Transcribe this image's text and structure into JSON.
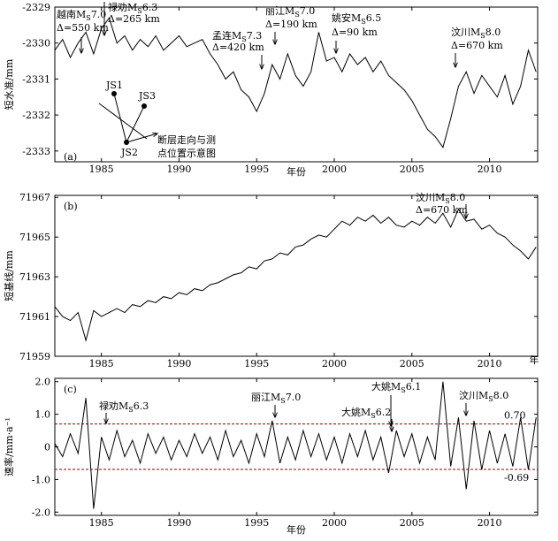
{
  "chart_data": [
    {
      "type": "line",
      "panel_label": "(a)",
      "ylabel": "短水准/mm",
      "xlabel": "年份",
      "color": "#000000",
      "xlim": [
        1982,
        2013.1
      ],
      "ylim": [
        -2333.3,
        -2329
      ],
      "xticks": [
        1985,
        1990,
        1995,
        2000,
        2005,
        2010
      ],
      "yticks": [
        -2329,
        -2330,
        -2331,
        -2332,
        -2333
      ],
      "x": [
        1982,
        1982.5,
        1983,
        1983.5,
        1984,
        1984.5,
        1985,
        1985.5,
        1986,
        1986.5,
        1987,
        1987.5,
        1988,
        1988.5,
        1989,
        1989.5,
        1990,
        1990.5,
        1991,
        1991.5,
        1992,
        1992.5,
        1993,
        1993.5,
        1994,
        1994.5,
        1995,
        1995.5,
        1996,
        1996.5,
        1997,
        1997.5,
        1998,
        1998.5,
        1999,
        1999.5,
        2000,
        2000.5,
        2001,
        2001.5,
        2002,
        2002.5,
        2003,
        2003.5,
        2004,
        2004.5,
        2005,
        2005.5,
        2006,
        2006.5,
        2007,
        2007.5,
        2008,
        2008.5,
        2009,
        2009.5,
        2010,
        2010.5,
        2011,
        2011.5,
        2012,
        2012.5,
        2013
      ],
      "values": [
        -2330.2,
        -2329.9,
        -2330.4,
        -2330.0,
        -2329.7,
        -2330.3,
        -2329.6,
        -2329.3,
        -2330.0,
        -2329.8,
        -2330.2,
        -2329.9,
        -2330.1,
        -2329.8,
        -2330.2,
        -2330.0,
        -2329.8,
        -2330.1,
        -2330.0,
        -2329.9,
        -2330.3,
        -2330.6,
        -2331.0,
        -2330.8,
        -2331.3,
        -2331.5,
        -2331.9,
        -2331.4,
        -2330.6,
        -2331.0,
        -2330.3,
        -2330.9,
        -2331.2,
        -2330.8,
        -2329.7,
        -2330.5,
        -2330.4,
        -2330.8,
        -2330.3,
        -2330.6,
        -2330.4,
        -2330.8,
        -2330.5,
        -2330.9,
        -2331.1,
        -2331.3,
        -2331.6,
        -2332.0,
        -2332.4,
        -2332.6,
        -2332.9,
        -2332.1,
        -2331.2,
        -2330.8,
        -2331.4,
        -2330.9,
        -2331.2,
        -2331.5,
        -2330.9,
        -2331.7,
        -2331.2,
        -2330.2,
        -2330.8
      ],
      "annotations": [
        {
          "label": "越南M",
          "sub": "S",
          "mag": "7.0",
          "dist": "Δ=550 km"
        },
        {
          "label": "禄劝M",
          "sub": "S",
          "mag": "6.3",
          "dist": "Δ=265 km"
        },
        {
          "label": "孟连M",
          "sub": "S",
          "mag": "7.3",
          "dist": "Δ=420 km"
        },
        {
          "label": "丽江M",
          "sub": "S",
          "mag": "7.0",
          "dist": "Δ=190 km"
        },
        {
          "label": "姚安M",
          "sub": "S",
          "mag": "6.5",
          "dist": "Δ=90 km"
        },
        {
          "label": "汶川M",
          "sub": "S",
          "mag": "8.0",
          "dist": "Δ=670 km"
        }
      ],
      "inset": {
        "points": [
          "JS1",
          "JS2",
          "JS3"
        ],
        "caption": [
          "断层走向与测",
          "点位置示意图"
        ]
      }
    },
    {
      "type": "line",
      "panel_label": "(b)",
      "ylabel": "短基线/mm",
      "xlabel": "年",
      "color": "#000000",
      "xlim": [
        1982,
        2013.1
      ],
      "ylim": [
        71959,
        71967.1
      ],
      "xticks": [
        1985,
        1990,
        1995,
        2000,
        2005,
        2010
      ],
      "yticks": [
        71967,
        71965,
        71963,
        71961,
        71959
      ],
      "x": [
        1982,
        1982.5,
        1983,
        1983.5,
        1984,
        1984.5,
        1985,
        1985.5,
        1986,
        1986.5,
        1987,
        1987.5,
        1988,
        1988.5,
        1989,
        1989.5,
        1990,
        1990.5,
        1991,
        1991.5,
        1992,
        1992.5,
        1993,
        1993.5,
        1994,
        1994.5,
        1995,
        1995.5,
        1996,
        1996.5,
        1997,
        1997.5,
        1998,
        1998.5,
        1999,
        1999.5,
        2000,
        2000.5,
        2001,
        2001.5,
        2002,
        2002.5,
        2003,
        2003.5,
        2004,
        2004.5,
        2005,
        2005.5,
        2006,
        2006.5,
        2007,
        2007.5,
        2008,
        2008.5,
        2009,
        2009.5,
        2010,
        2010.5,
        2011,
        2011.5,
        2012,
        2012.5,
        2013
      ],
      "values": [
        71961.5,
        71961.0,
        71960.8,
        71961.2,
        71959.8,
        71961.3,
        71961.0,
        71961.2,
        71961.4,
        71961.2,
        71961.6,
        71961.5,
        71961.8,
        71961.7,
        71962.0,
        71961.9,
        71962.2,
        71962.1,
        71962.4,
        71962.3,
        71962.6,
        71962.7,
        71962.9,
        71963.1,
        71963.2,
        71963.5,
        71963.4,
        71963.8,
        71963.9,
        71964.2,
        71964.1,
        71964.5,
        71964.6,
        71964.9,
        71965.1,
        71965.0,
        71965.4,
        71965.8,
        71965.6,
        71966.0,
        71965.8,
        71966.1,
        71965.7,
        71966.0,
        71965.6,
        71965.5,
        71965.8,
        71965.6,
        71966.0,
        71965.7,
        71966.2,
        71965.5,
        71966.4,
        71965.8,
        71965.9,
        71965.4,
        71965.6,
        71965.2,
        71965.0,
        71964.6,
        71964.3,
        71963.9,
        71964.5
      ],
      "annotations": [
        {
          "label": "汶川M",
          "sub": "S",
          "mag": "8.0",
          "dist": "Δ=670 km"
        }
      ]
    },
    {
      "type": "line",
      "panel_label": "(c)",
      "ylabel": "速率/mm·a⁻¹",
      "xlabel": "年份",
      "color": "#000000",
      "xlim": [
        1982,
        2013.1
      ],
      "ylim": [
        -2.1,
        2.1
      ],
      "xticks": [
        1985,
        1990,
        1995,
        2000,
        2005,
        2010
      ],
      "yticks": [
        {
          "value": 2,
          "label": "2.0"
        },
        {
          "value": 1,
          "label": "1.0"
        },
        0,
        {
          "value": -1,
          "label": "-1.0"
        },
        {
          "value": -2,
          "label": "-2.0"
        }
      ],
      "x": [
        1982,
        1982.5,
        1983,
        1983.5,
        1984,
        1984.5,
        1985,
        1985.5,
        1986,
        1986.5,
        1987,
        1987.5,
        1988,
        1988.5,
        1989,
        1989.5,
        1990,
        1990.5,
        1991,
        1991.5,
        1992,
        1992.5,
        1993,
        1993.5,
        1994,
        1994.5,
        1995,
        1995.5,
        1996,
        1996.5,
        1997,
        1997.5,
        1998,
        1998.5,
        1999,
        1999.5,
        2000,
        2000.5,
        2001,
        2001.5,
        2002,
        2002.5,
        2003,
        2003.5,
        2004,
        2004.5,
        2005,
        2005.5,
        2006,
        2006.5,
        2007,
        2007.5,
        2008,
        2008.5,
        2009,
        2009.5,
        2010,
        2010.5,
        2011,
        2011.5,
        2012,
        2012.5,
        2013
      ],
      "values": [
        0.1,
        -0.3,
        0.4,
        -0.2,
        1.5,
        -1.9,
        0.3,
        -0.4,
        0.5,
        -0.3,
        0.2,
        -0.5,
        0.4,
        -0.2,
        0.3,
        -0.4,
        0.2,
        -0.3,
        0.4,
        -0.2,
        0.3,
        -0.4,
        0.5,
        -0.3,
        0.2,
        -0.5,
        0.4,
        -0.3,
        0.8,
        -0.5,
        0.3,
        -0.4,
        0.5,
        -0.3,
        0.4,
        -0.4,
        0.3,
        -0.5,
        0.4,
        -0.3,
        0.5,
        -0.4,
        0.3,
        -0.8,
        0.5,
        -0.3,
        0.4,
        -0.5,
        0.3,
        -0.4,
        2.0,
        -0.6,
        0.9,
        -1.3,
        0.8,
        -0.7,
        0.5,
        -0.5,
        0.4,
        -0.6,
        0.9,
        -0.7,
        0.9
      ],
      "thresholds": [
        {
          "value": 0.7,
          "label": "0.70",
          "color": "#8b0000"
        },
        {
          "value": -0.69,
          "label": "-0.69",
          "color": "#8b0000"
        }
      ],
      "annotations": [
        {
          "label": "禄劝M",
          "sub": "S",
          "mag": "6.3"
        },
        {
          "label": "丽江M",
          "sub": "S",
          "mag": "7.0"
        },
        {
          "label": "大姚M",
          "sub": "S",
          "mag": "6.2"
        },
        {
          "label": "大姚M",
          "sub": "S",
          "mag": "6.1"
        },
        {
          "label": "汶川M",
          "sub": "S",
          "mag": "8.0"
        }
      ]
    }
  ]
}
